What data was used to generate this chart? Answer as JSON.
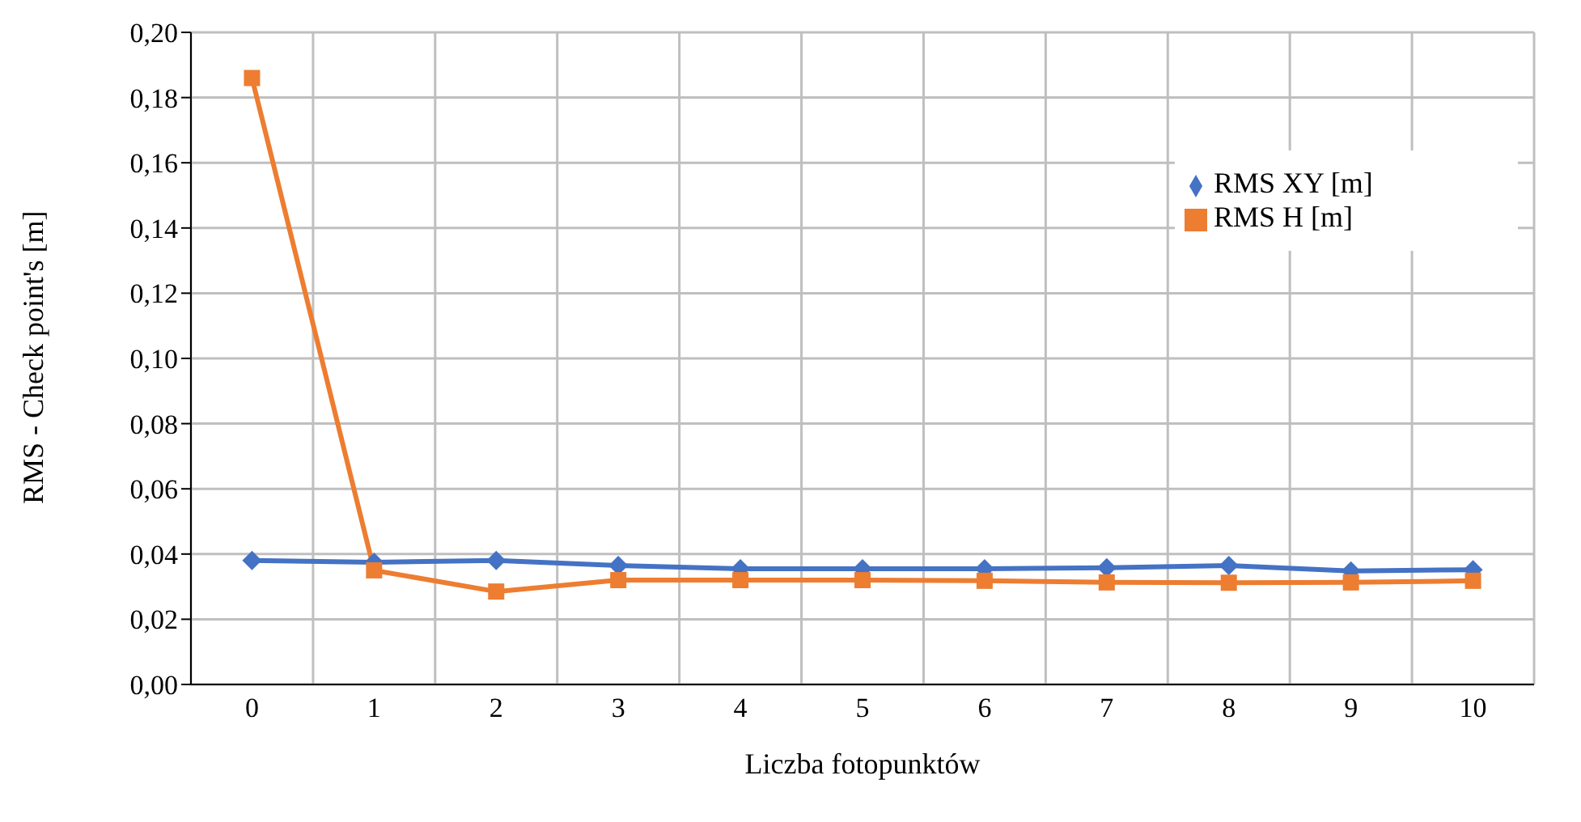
{
  "chart_data": {
    "type": "line",
    "xlabel": "Liczba fotopunktów",
    "ylabel": "RMS - Check point's [m]",
    "categories": [
      "0",
      "1",
      "2",
      "3",
      "4",
      "5",
      "6",
      "7",
      "8",
      "9",
      "10"
    ],
    "series": [
      {
        "name": "RMS XY [m]",
        "color": "#4472c4",
        "marker": "diamond",
        "values": [
          0.038,
          0.0375,
          0.038,
          0.0365,
          0.0355,
          0.0355,
          0.0355,
          0.0358,
          0.0365,
          0.0348,
          0.0352
        ]
      },
      {
        "name": "RMS H [m]",
        "color": "#ed7d31",
        "marker": "square",
        "values": [
          0.186,
          0.035,
          0.0285,
          0.032,
          0.032,
          0.032,
          0.0318,
          0.0313,
          0.0312,
          0.0313,
          0.0318
        ]
      }
    ],
    "ylim": [
      0,
      0.2
    ],
    "yticks": [
      {
        "value": 0,
        "label": "0,00"
      },
      {
        "value": 0.02,
        "label": "0,02"
      },
      {
        "value": 0.04,
        "label": "0,04"
      },
      {
        "value": 0.06,
        "label": "0,06"
      },
      {
        "value": 0.08,
        "label": "0,08"
      },
      {
        "value": 0.1,
        "label": "0,10"
      },
      {
        "value": 0.12,
        "label": "0,12"
      },
      {
        "value": 0.14,
        "label": "0,14"
      },
      {
        "value": 0.16,
        "label": "0,16"
      },
      {
        "value": 0.18,
        "label": "0,18"
      },
      {
        "value": 0.2,
        "label": "0,20"
      }
    ],
    "grid": true,
    "legend": "top right",
    "line_style": "solid"
  }
}
